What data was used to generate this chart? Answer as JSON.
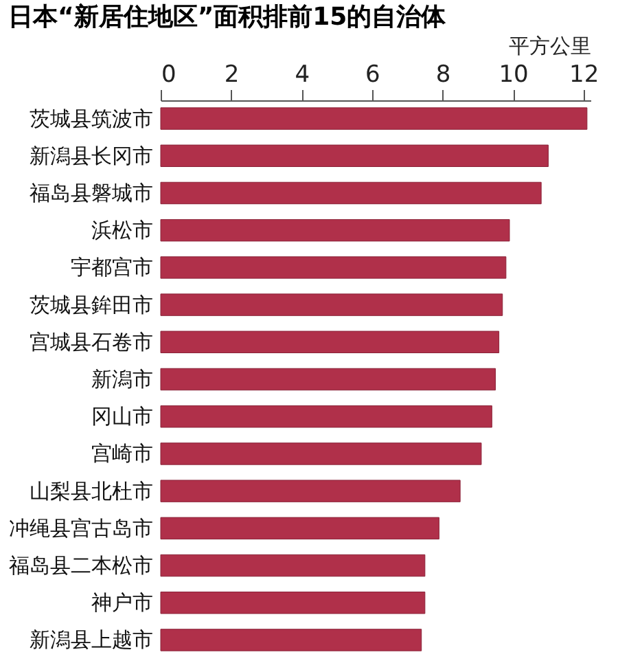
{
  "chart_data": {
    "type": "bar",
    "orientation": "horizontal",
    "title": "日本“新居住地区”面积排前15的自治体",
    "xlabel": "平方公里",
    "categories": [
      "茨城县筑波市",
      "新潟县长冈市",
      "福岛县磐城市",
      "浜松市",
      "宇都宫市",
      "茨城县鉾田市",
      "宫城县石卷市",
      "新潟市",
      "冈山市",
      "宫崎市",
      "山梨县北杜市",
      "冲绳县宫古岛市",
      "福岛县二本松市",
      "神户市",
      "新潟县上越市"
    ],
    "values": [
      12.1,
      11.0,
      10.8,
      9.9,
      9.8,
      9.7,
      9.6,
      9.5,
      9.4,
      9.1,
      8.5,
      7.9,
      7.5,
      7.5,
      7.4
    ],
    "color": "#b0304a",
    "xlim": [
      0,
      12.2
    ],
    "xticks": [
      0,
      2,
      4,
      6,
      8,
      10,
      12
    ],
    "grid": false
  }
}
